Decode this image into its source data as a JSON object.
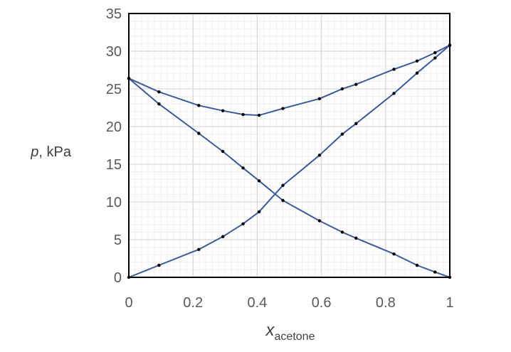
{
  "chart_data": {
    "type": "line",
    "title": "",
    "xlabel_main": "x",
    "xlabel_sub": "acetone",
    "ylabel_var": "p",
    "ylabel_unit": ", kPa",
    "xlim": [
      0,
      1
    ],
    "ylim": [
      0,
      35
    ],
    "x_ticks": [
      {
        "value": 0,
        "label": "0"
      },
      {
        "value": 0.2,
        "label": "0.2"
      },
      {
        "value": 0.4,
        "label": "0.4"
      },
      {
        "value": 0.6,
        "label": "0.6"
      },
      {
        "value": 0.8,
        "label": "0.8"
      },
      {
        "value": 1,
        "label": "1"
      }
    ],
    "y_ticks": [
      {
        "value": 0,
        "label": "0"
      },
      {
        "value": 5,
        "label": "5"
      },
      {
        "value": 10,
        "label": "10"
      },
      {
        "value": 15,
        "label": "15"
      },
      {
        "value": 20,
        "label": "20"
      },
      {
        "value": 25,
        "label": "25"
      },
      {
        "value": 30,
        "label": "30"
      },
      {
        "value": 35,
        "label": "35"
      }
    ],
    "grid": {
      "major": true,
      "minor": true,
      "x_minor_step": 0.02,
      "y_minor_step": 1
    },
    "line_color": "#3a5a99",
    "point_color": "#000000",
    "grid_major_color": "#d9d9d9",
    "grid_minor_color": "#efefef",
    "series": [
      {
        "x": [
          0,
          0.094,
          0.218,
          0.293,
          0.356,
          0.406,
          0.48,
          0.594,
          0.665,
          0.708,
          0.826,
          0.898,
          0.954,
          1
        ],
        "lines": [
          [
            0,
            26.4
          ],
          [
            0.094,
            24.6
          ],
          [
            0.218,
            22.8
          ],
          [
            0.293,
            22.1
          ],
          [
            0.356,
            21.6
          ],
          [
            0.406,
            21.5
          ],
          [
            0.48,
            22.4
          ],
          [
            0.594,
            23.7
          ],
          [
            0.665,
            25.0
          ],
          [
            0.708,
            25.6
          ],
          [
            0.826,
            27.6
          ],
          [
            0.898,
            28.7
          ],
          [
            0.954,
            29.8
          ],
          [
            1,
            30.8
          ]
        ]
      },
      {
        "lines": [
          [
            0,
            0
          ],
          [
            0.094,
            1.6
          ],
          [
            0.218,
            3.7
          ],
          [
            0.293,
            5.4
          ],
          [
            0.356,
            7.1
          ],
          [
            0.406,
            8.7
          ],
          [
            0.48,
            12.2
          ],
          [
            0.594,
            16.2
          ],
          [
            0.665,
            19.0
          ],
          [
            0.708,
            20.4
          ],
          [
            0.826,
            24.4
          ],
          [
            0.898,
            27.1
          ],
          [
            0.954,
            29.1
          ],
          [
            1,
            30.8
          ]
        ]
      },
      {
        "lines": [
          [
            0,
            26.4
          ],
          [
            0.094,
            23.0
          ],
          [
            0.218,
            19.1
          ],
          [
            0.293,
            16.7
          ],
          [
            0.356,
            14.5
          ],
          [
            0.406,
            12.8
          ],
          [
            0.48,
            10.2
          ],
          [
            0.594,
            7.5
          ],
          [
            0.665,
            6.0
          ],
          [
            0.708,
            5.2
          ],
          [
            0.826,
            3.1
          ],
          [
            0.898,
            1.6
          ],
          [
            0.954,
            0.7
          ],
          [
            1,
            0
          ]
        ]
      }
    ]
  }
}
